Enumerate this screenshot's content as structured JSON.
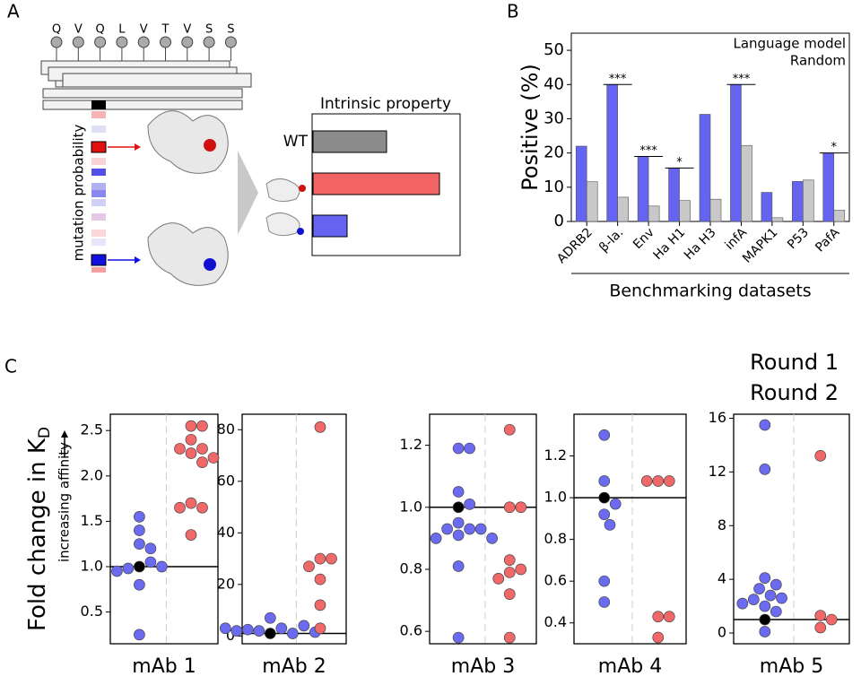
{
  "panel_labels": [
    "A",
    "B",
    "C"
  ],
  "panel_a": {
    "sequence": [
      "Q",
      "V",
      "Q",
      "L",
      "V",
      "T",
      "V",
      "S",
      "S"
    ],
    "strip_label": "mutation probability",
    "plot_title": "Intrinsic property",
    "wt_label": "WT"
  },
  "panel_c": {
    "y_label": "Fold change in K",
    "y_label_sub": "D",
    "y_note": "increasing affinity",
    "legend": [
      {
        "name": "Round 1",
        "color": "#6b6bf2"
      },
      {
        "name": "Round 2",
        "color": "#f06868"
      }
    ],
    "reference_color": "#000000"
  },
  "chart_data": [
    {
      "type": "bar",
      "ylabel": "Positive (%)",
      "xlabel": "Benchmarking datasets",
      "categories": [
        "ADRB2",
        "β-la.",
        "Env",
        "Ha H1",
        "Ha H3",
        "infA",
        "MAPK1",
        "P53",
        "PafA"
      ],
      "series": [
        {
          "name": "Language model",
          "color": "#6464f0",
          "values": [
            22,
            40,
            19,
            15.6,
            31.3,
            40,
            8.5,
            11.7,
            20
          ]
        },
        {
          "name": "Random",
          "color": "#c8c8c8",
          "values": [
            11.6,
            7.1,
            4.5,
            6.1,
            6.5,
            22.2,
            1.1,
            12.1,
            3.3
          ]
        }
      ],
      "significance": [
        null,
        "***",
        "***",
        "*",
        null,
        "***",
        null,
        null,
        "*"
      ],
      "ylim": [
        0,
        55
      ],
      "yticks": [
        0,
        10,
        20,
        30,
        40,
        50
      ],
      "legend": "upper right"
    },
    {
      "type": "strip",
      "xlabel": "mAb 1",
      "ylim": [
        0.15,
        2.68
      ],
      "yticks": [
        0.5,
        {
          "value": 1,
          "label": "1.0"
        },
        1.5,
        {
          "value": 2,
          "label": "2.0"
        },
        2.5
      ],
      "reference": 1,
      "series": [
        {
          "values": [
            1.55,
            1.4,
            1.25,
            1.2,
            1.05,
            0.98,
            1.0,
            0.95,
            0.8,
            0.25
          ]
        },
        {
          "values": [
            2.55,
            2.55,
            2.4,
            2.3,
            2.3,
            2.25,
            2.2,
            2.15,
            1.7,
            1.65,
            1.65,
            1.35
          ]
        }
      ]
    },
    {
      "type": "strip",
      "xlabel": "mAb 2",
      "ylim": [
        -3,
        86
      ],
      "yticks": [
        0,
        20,
        40,
        60,
        80
      ],
      "reference": 1,
      "series": [
        {
          "values": [
            3,
            2,
            1,
            2.5,
            4,
            7,
            2,
            1.5,
            3
          ]
        },
        {
          "values": [
            81,
            30,
            30,
            27,
            22,
            12,
            3
          ]
        }
      ]
    },
    {
      "type": "strip",
      "xlabel": "mAb 3",
      "ylim": [
        0.56,
        1.3
      ],
      "yticks": [
        0.6,
        0.8,
        {
          "value": 1,
          "label": "1.0"
        },
        1.2
      ],
      "reference": 1,
      "series": [
        {
          "values": [
            1.19,
            1.19,
            1.05,
            1.01,
            0.95,
            0.93,
            0.93,
            0.93,
            0.91,
            0.9,
            0.9,
            0.81,
            0.58
          ]
        },
        {
          "values": [
            1.25,
            1.0,
            1.0,
            0.83,
            0.8,
            0.79,
            0.77,
            0.72,
            0.58
          ]
        }
      ]
    },
    {
      "type": "strip",
      "xlabel": "mAb 4",
      "ylim": [
        0.3,
        1.4
      ],
      "yticks": [
        0.4,
        0.6,
        0.8,
        {
          "value": 1,
          "label": "1.0"
        },
        1.2
      ],
      "reference": 1,
      "series": [
        {
          "values": [
            1.3,
            1.08,
            0.97,
            0.92,
            0.87,
            0.6,
            0.5
          ]
        },
        {
          "values": [
            1.08,
            1.08,
            1.08,
            0.43,
            0.43,
            0.33
          ]
        }
      ]
    },
    {
      "type": "strip",
      "xlabel": "mAb 5",
      "ylim": [
        -0.8,
        16.3
      ],
      "yticks": [
        0,
        4,
        8,
        12,
        16
      ],
      "reference": 1,
      "series": [
        {
          "values": [
            15.5,
            12.2,
            4.1,
            3.6,
            3.3,
            2.8,
            2.6,
            2.5,
            2.2,
            2.0,
            1.6,
            0.1
          ]
        },
        {
          "values": [
            13.2,
            1.3,
            1.0,
            0.4
          ]
        }
      ]
    }
  ]
}
